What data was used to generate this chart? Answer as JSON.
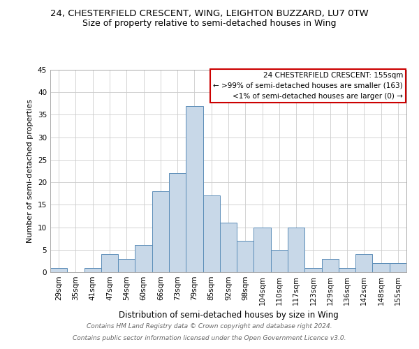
{
  "title": "24, CHESTERFIELD CRESCENT, WING, LEIGHTON BUZZARD, LU7 0TW",
  "subtitle": "Size of property relative to semi-detached houses in Wing",
  "xlabel": "Distribution of semi-detached houses by size in Wing",
  "ylabel": "Number of semi-detached properties",
  "footer1": "Contains HM Land Registry data © Crown copyright and database right 2024.",
  "footer2": "Contains public sector information licensed under the Open Government Licence v3.0.",
  "categories": [
    "29sqm",
    "35sqm",
    "41sqm",
    "47sqm",
    "54sqm",
    "60sqm",
    "66sqm",
    "73sqm",
    "79sqm",
    "85sqm",
    "92sqm",
    "98sqm",
    "104sqm",
    "110sqm",
    "117sqm",
    "123sqm",
    "129sqm",
    "136sqm",
    "142sqm",
    "148sqm",
    "155sqm"
  ],
  "values": [
    1,
    0,
    1,
    4,
    3,
    6,
    18,
    22,
    37,
    17,
    11,
    7,
    10,
    5,
    10,
    1,
    3,
    1,
    4,
    2,
    2
  ],
  "bar_color": "#c8d8e8",
  "bar_edge_color": "#5b8db8",
  "annotation_title": "24 CHESTERFIELD CRESCENT: 155sqm",
  "annotation_line1": "← >99% of semi-detached houses are smaller (163)",
  "annotation_line2": "<1% of semi-detached houses are larger (0) →",
  "annotation_box_color": "#ffffff",
  "annotation_box_edge_color": "#cc0000",
  "ylim": [
    0,
    45
  ],
  "yticks": [
    0,
    5,
    10,
    15,
    20,
    25,
    30,
    35,
    40,
    45
  ],
  "grid_color": "#cccccc",
  "title_fontsize": 9.5,
  "subtitle_fontsize": 9,
  "xlabel_fontsize": 8.5,
  "ylabel_fontsize": 8,
  "tick_fontsize": 7.5,
  "annotation_fontsize": 7.5,
  "footer_fontsize": 6.5
}
